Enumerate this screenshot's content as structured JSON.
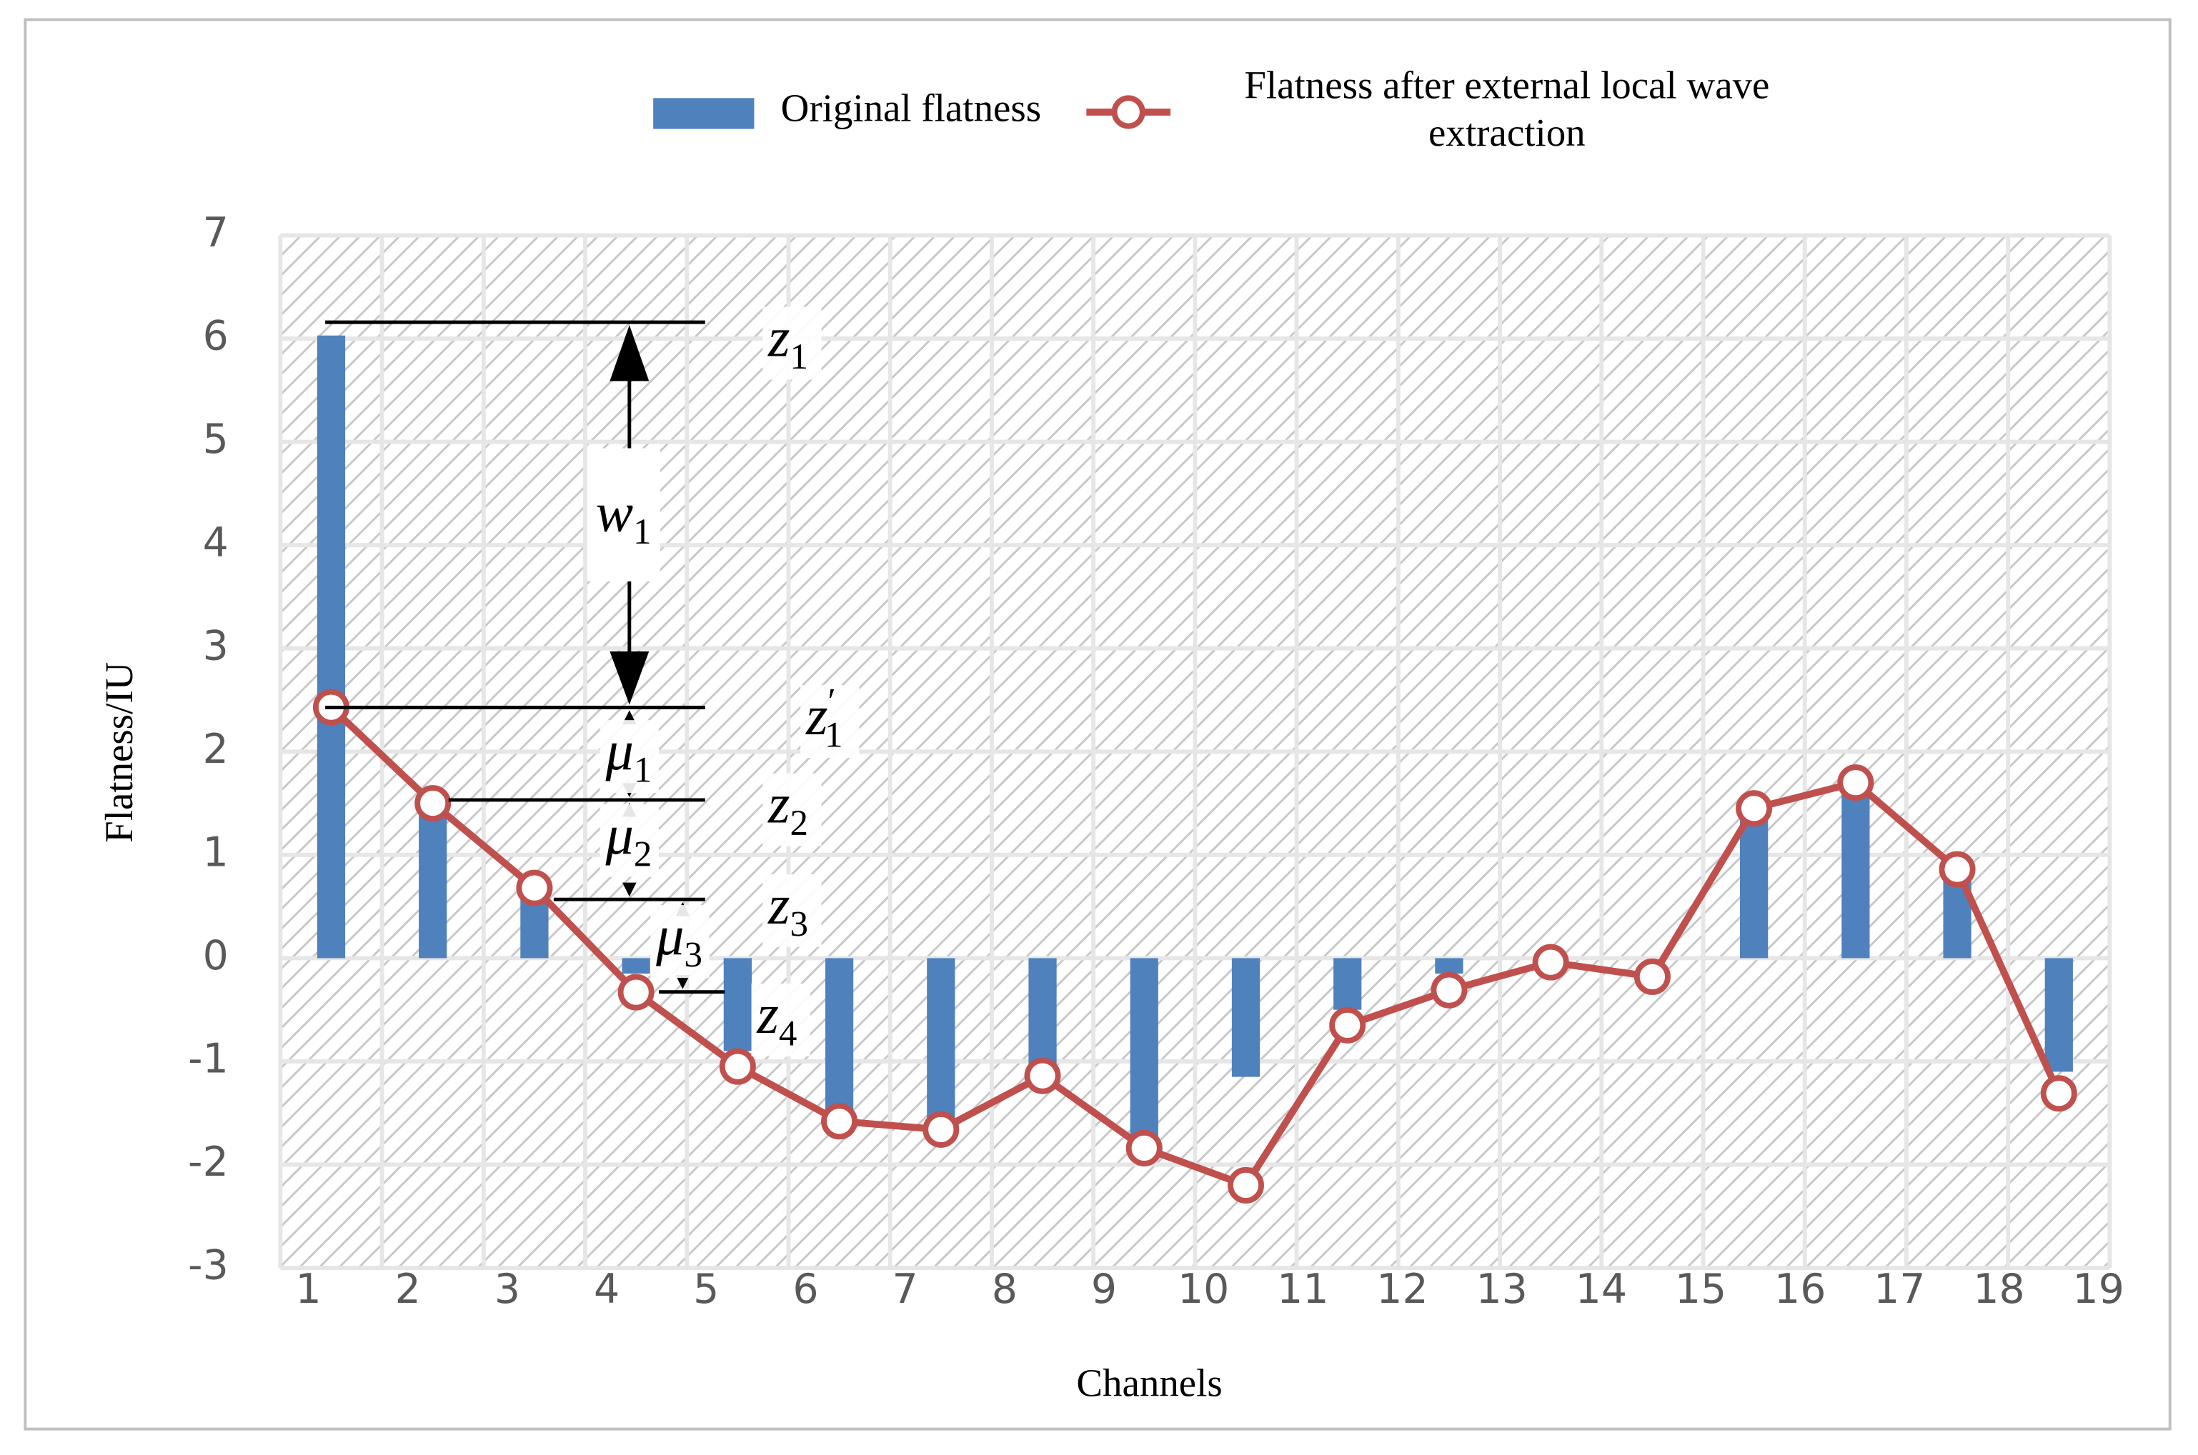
{
  "chart_data": {
    "type": "bar_line",
    "y_label": "Flatness/IU",
    "x_label": "Channels",
    "ylim": [
      -3,
      7
    ],
    "yticks": [
      -3,
      -2,
      -1,
      0,
      1,
      2,
      3,
      4,
      5,
      6,
      7
    ],
    "xlim": [
      1,
      19
    ],
    "xticks": [
      1,
      2,
      3,
      4,
      5,
      6,
      7,
      8,
      9,
      10,
      11,
      12,
      13,
      14,
      15,
      16,
      17,
      18,
      19
    ],
    "grid": true,
    "series": [
      {
        "name": "Original flatness",
        "type": "bar",
        "color": "#4f81bd",
        "values": [
          6.03,
          1.48,
          0.62,
          -0.15,
          -0.9,
          -1.5,
          -1.6,
          -1.1,
          -1.75,
          -1.15,
          -0.5,
          -0.15,
          0,
          0,
          1.4,
          1.7,
          0.8,
          -1.1
        ]
      },
      {
        "name": "Flatness after external local wave extraction",
        "type": "line",
        "color": "#c0504d",
        "values": [
          2.43,
          1.5,
          0.68,
          -0.33,
          -1.05,
          -1.58,
          -1.66,
          -1.14,
          -1.84,
          -2.2,
          -0.65,
          -0.31,
          -0.04,
          -0.18,
          1.45,
          1.7,
          0.86,
          -1.31
        ]
      }
    ],
    "annotations": [
      {
        "base": "z",
        "sub": "1"
      },
      {
        "base": "w",
        "sub": "1"
      },
      {
        "base": "z",
        "prime": "′",
        "sub": "1"
      },
      {
        "base": "μ",
        "sub": "1"
      },
      {
        "base": "z",
        "sub": "2"
      },
      {
        "base": "μ",
        "sub": "2"
      },
      {
        "base": "z",
        "sub": "3"
      },
      {
        "base": "μ",
        "sub": "3"
      },
      {
        "base": "z",
        "sub": "4"
      }
    ]
  }
}
